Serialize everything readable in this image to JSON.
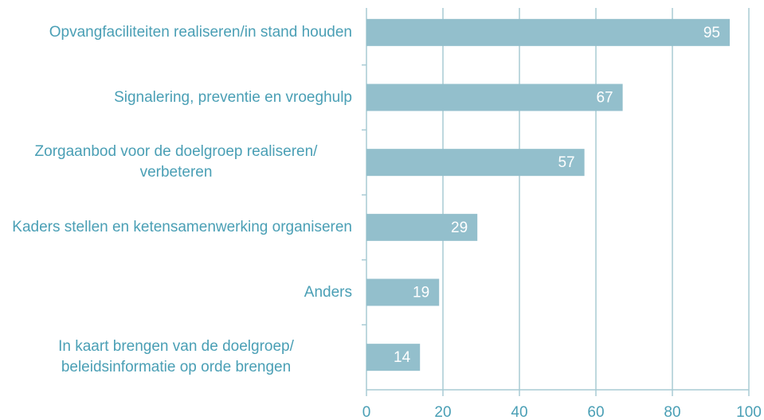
{
  "chart_data": {
    "type": "bar",
    "orientation": "horizontal",
    "categories": [
      "Opvangfaciliteiten realiseren/in stand houden",
      "Signalering, preventie en vroeghulp",
      "Zorgaanbod voor de doelgroep realiseren/ verbeteren",
      "Kaders stellen en ketensamenwerking organiseren",
      "Anders",
      "In kaart brengen van de doelgroep/ beleidsinformatie op orde brengen"
    ],
    "values": [
      95,
      67,
      57,
      29,
      19,
      14
    ],
    "color": "#93bfcc",
    "xlim": [
      0,
      100
    ],
    "xticks": [
      0,
      20,
      40,
      60,
      80,
      100
    ],
    "grid": true
  }
}
